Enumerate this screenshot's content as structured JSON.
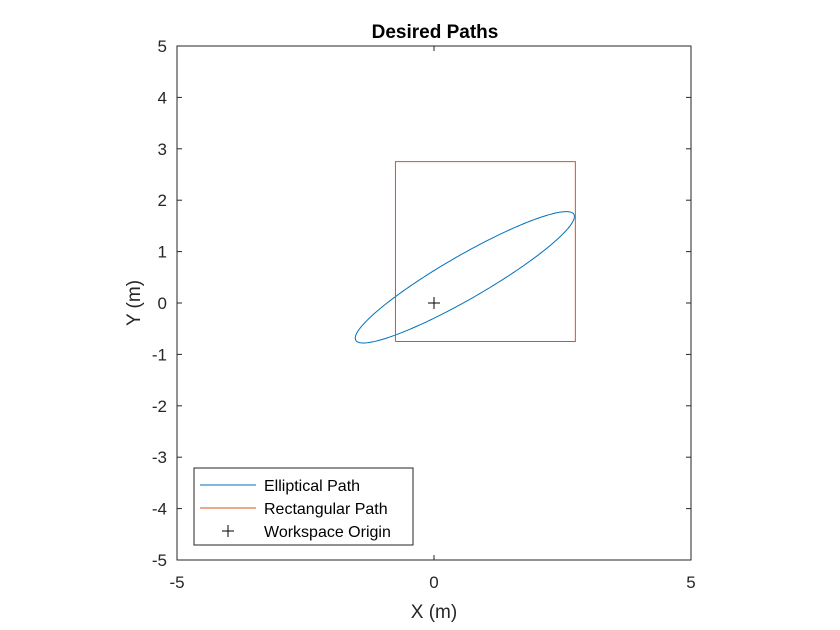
{
  "chart_data": {
    "type": "line",
    "title": "Desired Paths",
    "xlabel": "X (m)",
    "ylabel": "Y (m)",
    "xlim": [
      -5,
      5
    ],
    "ylim": [
      -5,
      5
    ],
    "x_ticks": [
      -5,
      0,
      5
    ],
    "y_ticks": [
      -5,
      -4,
      -3,
      -2,
      -1,
      0,
      1,
      2,
      3,
      4,
      5
    ],
    "grid": false,
    "legend_position": "bottom-left",
    "series": [
      {
        "name": "Elliptical Path",
        "kind": "ellipse",
        "color": "#0072BD",
        "center": [
          0.6,
          0.5
        ],
        "semi_major": 2.45,
        "semi_minor": 0.42,
        "angle_deg": 30
      },
      {
        "name": "Rectangular Path",
        "kind": "polyline",
        "color": "#D95319",
        "x": [
          -0.75,
          2.75,
          2.75,
          -0.75,
          -0.75
        ],
        "y": [
          -0.75,
          -0.75,
          2.75,
          2.75,
          -0.75
        ]
      },
      {
        "name": "Workspace Origin",
        "kind": "marker",
        "marker": "+",
        "color": "#000000",
        "x": [
          0
        ],
        "y": [
          0
        ]
      }
    ]
  }
}
